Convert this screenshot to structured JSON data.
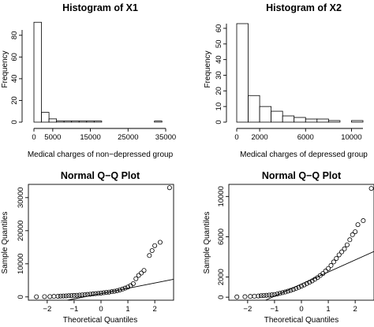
{
  "chart_data": [
    {
      "type": "bar",
      "title": "Histogram of X1",
      "xlabel": "Medical charges of non−depressed group",
      "ylabel": "Frequency",
      "xlim": [
        0,
        35000
      ],
      "ylim": [
        0,
        90
      ],
      "x_ticks": [
        "0",
        "5000",
        "15000",
        "25000",
        "35000"
      ],
      "x_tick_values": [
        0,
        5000,
        15000,
        25000,
        35000
      ],
      "y_ticks": [
        "0",
        "20",
        "40",
        "60",
        "80"
      ],
      "y_tick_values": [
        0,
        20,
        40,
        60,
        80
      ],
      "bin_width": 2000,
      "bin_starts": [
        0,
        2000,
        4000,
        6000,
        8000,
        10000,
        12000,
        14000,
        16000,
        18000,
        32000
      ],
      "values": [
        92,
        9,
        3,
        1,
        1,
        1,
        1,
        1,
        1,
        0,
        1
      ],
      "grid": false
    },
    {
      "type": "bar",
      "title": "Histogram of X2",
      "xlabel": "Medical charges of depressed group",
      "ylabel": "Frequency",
      "xlim": [
        0,
        11000
      ],
      "ylim": [
        0,
        63
      ],
      "x_ticks": [
        "0",
        "2000",
        "6000",
        "10000"
      ],
      "x_tick_values": [
        0,
        2000,
        6000,
        10000
      ],
      "y_ticks": [
        "0",
        "10",
        "20",
        "30",
        "40",
        "50",
        "60"
      ],
      "y_tick_values": [
        0,
        10,
        20,
        30,
        40,
        50,
        60
      ],
      "bin_width": 1000,
      "bin_starts": [
        0,
        1000,
        2000,
        3000,
        4000,
        5000,
        6000,
        7000,
        8000,
        9000,
        10000
      ],
      "values": [
        63,
        17,
        10,
        7,
        4,
        3,
        2,
        2,
        1,
        0,
        1
      ],
      "grid": false
    },
    {
      "type": "scatter",
      "title": "Normal Q−Q Plot",
      "xlabel": "Theoretical Quantiles",
      "ylabel": "Sample Quantiles",
      "xlim": [
        -2.7,
        2.7
      ],
      "ylim": [
        -1000,
        34000
      ],
      "x_ticks": [
        "−2",
        "−1",
        "0",
        "1",
        "2"
      ],
      "x_tick_values": [
        -2,
        -1,
        0,
        1,
        2
      ],
      "y_ticks": [
        "0",
        "10000",
        "20000",
        "30000"
      ],
      "y_tick_values": [
        0,
        10000,
        20000,
        30000
      ],
      "points": [
        [
          -2.4,
          50
        ],
        [
          -2.1,
          80
        ],
        [
          -1.9,
          100
        ],
        [
          -1.75,
          150
        ],
        [
          -1.6,
          200
        ],
        [
          -1.5,
          250
        ],
        [
          -1.4,
          280
        ],
        [
          -1.3,
          320
        ],
        [
          -1.2,
          360
        ],
        [
          -1.1,
          400
        ],
        [
          -1.0,
          450
        ],
        [
          -0.9,
          500
        ],
        [
          -0.8,
          560
        ],
        [
          -0.7,
          620
        ],
        [
          -0.6,
          680
        ],
        [
          -0.5,
          750
        ],
        [
          -0.4,
          820
        ],
        [
          -0.3,
          900
        ],
        [
          -0.2,
          980
        ],
        [
          -0.1,
          1050
        ],
        [
          0.0,
          1150
        ],
        [
          0.1,
          1250
        ],
        [
          0.2,
          1350
        ],
        [
          0.3,
          1450
        ],
        [
          0.4,
          1580
        ],
        [
          0.5,
          1720
        ],
        [
          0.6,
          1900
        ],
        [
          0.7,
          2100
        ],
        [
          0.8,
          2350
        ],
        [
          0.9,
          2650
        ],
        [
          1.0,
          3000
        ],
        [
          1.1,
          3400
        ],
        [
          1.2,
          4000
        ],
        [
          1.3,
          5500
        ],
        [
          1.4,
          6500
        ],
        [
          1.5,
          7200
        ],
        [
          1.6,
          8000
        ],
        [
          1.8,
          12500
        ],
        [
          1.9,
          14000
        ],
        [
          2.0,
          15500
        ],
        [
          2.2,
          16500
        ],
        [
          2.55,
          33000
        ]
      ],
      "reference_line": {
        "intercept": 1000,
        "slope": 1600
      },
      "grid": false
    },
    {
      "type": "scatter",
      "title": "Normal Q−Q Plot",
      "xlabel": "Theoretical Quantiles",
      "ylabel": "Sample Quantiles",
      "xlim": [
        -2.7,
        2.7
      ],
      "ylim": [
        -300,
        11200
      ],
      "x_ticks": [
        "−2",
        "−1",
        "0",
        "1",
        "2"
      ],
      "x_tick_values": [
        -2,
        -1,
        0,
        1,
        2
      ],
      "y_ticks": [
        "0",
        "2000",
        "6000",
        "10000"
      ],
      "y_tick_values": [
        0,
        2000,
        6000,
        10000
      ],
      "points": [
        [
          -2.4,
          30
        ],
        [
          -2.1,
          50
        ],
        [
          -1.9,
          80
        ],
        [
          -1.75,
          100
        ],
        [
          -1.6,
          120
        ],
        [
          -1.5,
          150
        ],
        [
          -1.4,
          170
        ],
        [
          -1.3,
          190
        ],
        [
          -1.2,
          210
        ],
        [
          -1.1,
          240
        ],
        [
          -1.0,
          270
        ],
        [
          -0.9,
          320
        ],
        [
          -0.8,
          380
        ],
        [
          -0.7,
          450
        ],
        [
          -0.6,
          520
        ],
        [
          -0.5,
          600
        ],
        [
          -0.4,
          680
        ],
        [
          -0.3,
          770
        ],
        [
          -0.2,
          870
        ],
        [
          -0.1,
          980
        ],
        [
          0.0,
          1100
        ],
        [
          0.1,
          1220
        ],
        [
          0.2,
          1350
        ],
        [
          0.3,
          1480
        ],
        [
          0.4,
          1620
        ],
        [
          0.5,
          1780
        ],
        [
          0.6,
          1950
        ],
        [
          0.7,
          2150
        ],
        [
          0.8,
          2350
        ],
        [
          0.9,
          2600
        ],
        [
          1.0,
          2850
        ],
        [
          1.1,
          3150
        ],
        [
          1.2,
          3500
        ],
        [
          1.3,
          3850
        ],
        [
          1.4,
          4200
        ],
        [
          1.5,
          4500
        ],
        [
          1.6,
          4800
        ],
        [
          1.7,
          5200
        ],
        [
          1.8,
          5700
        ],
        [
          1.9,
          6200
        ],
        [
          2.0,
          6500
        ],
        [
          2.1,
          7200
        ],
        [
          2.3,
          7600
        ],
        [
          2.6,
          10800
        ]
      ],
      "reference_line": {
        "intercept": 1300,
        "slope": 1200
      },
      "grid": false
    }
  ]
}
